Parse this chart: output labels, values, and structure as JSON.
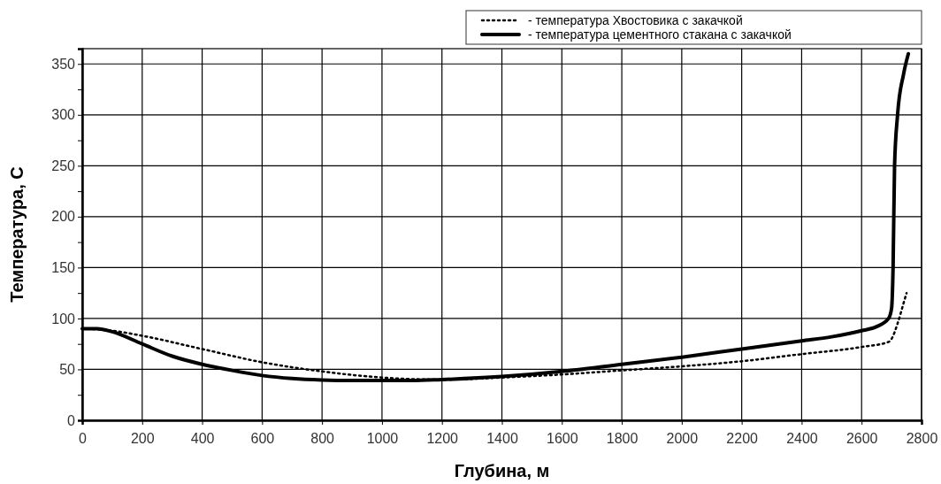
{
  "chart_data": {
    "type": "line",
    "xlabel": "Глубина, м",
    "ylabel": "Температура, С",
    "xlim": [
      0,
      2800
    ],
    "xticks": [
      0,
      200,
      400,
      600,
      800,
      1000,
      1200,
      1400,
      1600,
      1800,
      2000,
      2200,
      2400,
      2600,
      2800
    ],
    "ylim": [
      0,
      365
    ],
    "yticks": [
      0,
      {
        "value": 25,
        "label": null
      },
      50,
      {
        "value": 75,
        "label": null
      },
      100,
      {
        "value": 125,
        "label": null
      },
      150,
      {
        "value": 175,
        "label": null
      },
      200,
      {
        "value": 225,
        "label": null
      },
      250,
      {
        "value": 275,
        "label": null
      },
      300,
      {
        "value": 325,
        "label": null
      },
      350
    ],
    "grid": true,
    "legend": "top right",
    "marker": "none",
    "series": [
      {
        "name": "- температура Хвостовика с закачкой",
        "color": "#000000",
        "line_style": "dotted",
        "x": [
          0,
          100,
          200,
          400,
          600,
          800,
          1000,
          1200,
          1400,
          1600,
          1800,
          2000,
          2200,
          2400,
          2600,
          2690,
          2700,
          2720,
          2740,
          2750
        ],
        "values": [
          90,
          88,
          83,
          70,
          57,
          48,
          42,
          40,
          42,
          45,
          49,
          53,
          58,
          65,
          72,
          77,
          80,
          95,
          115,
          125
        ]
      },
      {
        "name": "- температура цементного стакана с закачкой",
        "color": "#000000",
        "line_style": "solid",
        "x": [
          0,
          50,
          100,
          200,
          300,
          400,
          500,
          600,
          700,
          800,
          900,
          1000,
          1100,
          1200,
          1400,
          1600,
          1800,
          2000,
          2200,
          2400,
          2500,
          2600,
          2650,
          2690,
          2700,
          2705,
          2710,
          2720,
          2740,
          2756
        ],
        "values": [
          90,
          90,
          87,
          75,
          63,
          55,
          49,
          44,
          41,
          39.5,
          39,
          39,
          39,
          40,
          43,
          48,
          55,
          62,
          70,
          78,
          82,
          88,
          92,
          100,
          110,
          150,
          250,
          300,
          340,
          360
        ]
      }
    ]
  }
}
